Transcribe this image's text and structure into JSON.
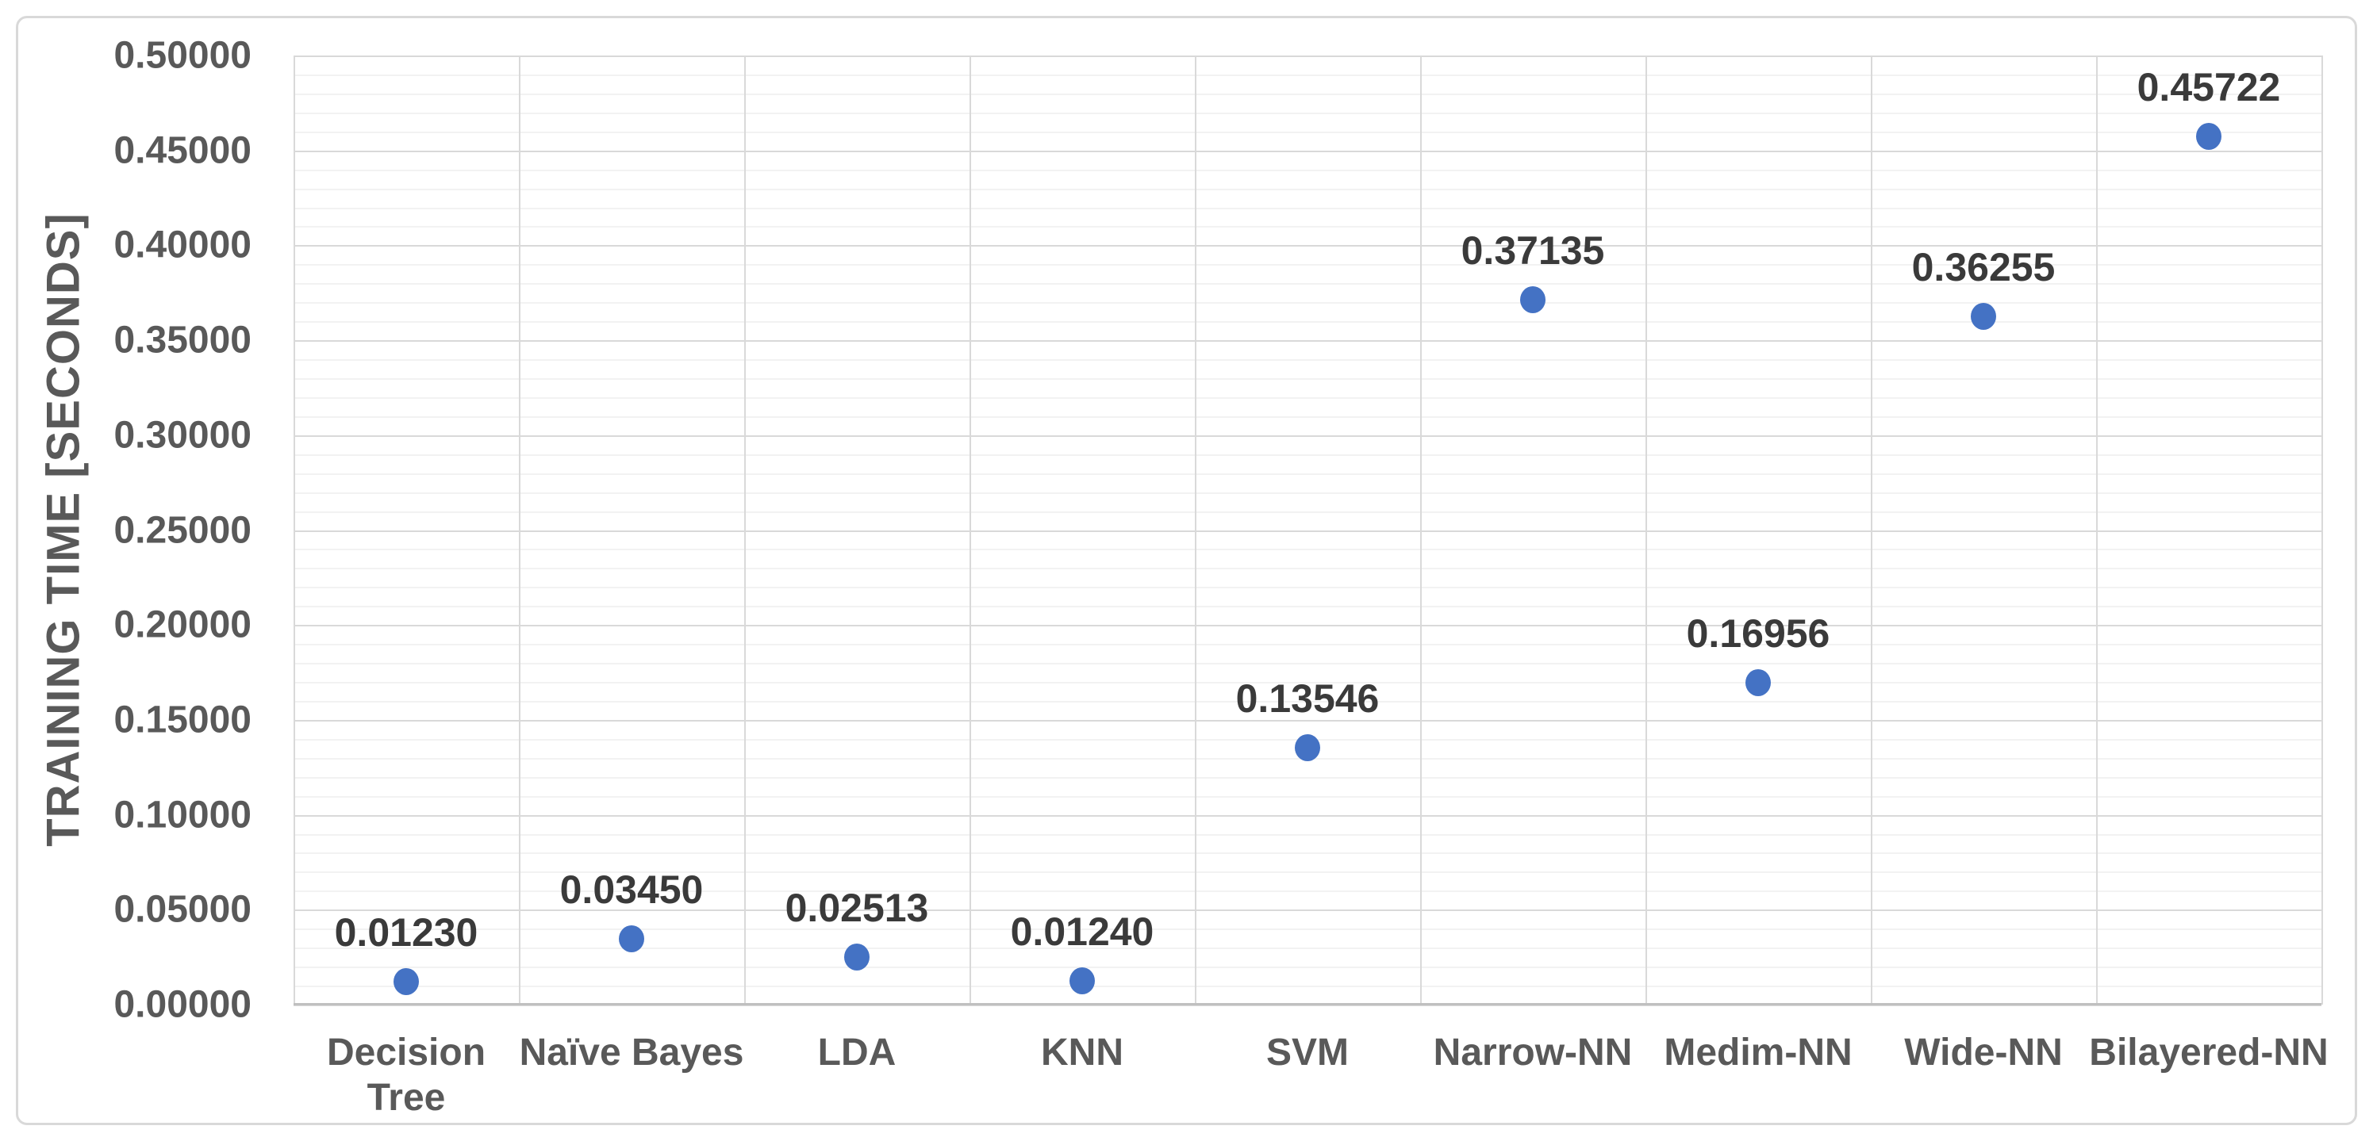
{
  "chart_data": {
    "type": "scatter",
    "title": "",
    "xlabel": "",
    "ylabel": "TRAINING TIME [SECONDS]",
    "categories": [
      "Decision\nTree",
      "Naïve Bayes",
      "LDA",
      "KNN",
      "SVM",
      "Narrow-NN",
      "Medim-NN",
      "Wide-NN",
      "Bilayered-NN"
    ],
    "values": [
      0.0123,
      0.0345,
      0.02513,
      0.0124,
      0.13546,
      0.37135,
      0.16956,
      0.36255,
      0.45722
    ],
    "point_labels": [
      "0.01230",
      "0.03450",
      "0.02513",
      "0.01240",
      "0.13546",
      "0.37135",
      "0.16956",
      "0.36255",
      "0.45722"
    ],
    "ylim": [
      0.0,
      0.5
    ],
    "y_major_step": 0.05,
    "y_minor_step": 0.01,
    "y_tick_decimals": 5,
    "y_tick_labels": [
      "0.00000",
      "0.05000",
      "0.10000",
      "0.15000",
      "0.20000",
      "0.25000",
      "0.30000",
      "0.35000",
      "0.40000",
      "0.45000",
      "0.50000"
    ],
    "grid": true,
    "legend_position": "none",
    "colors": {
      "marker": "#4472C4",
      "data_label": "#3A3A3A",
      "axis_text": "#595959",
      "major_grid": "#D9D9D9",
      "minor_grid": "#F2F2F2",
      "axis_line": "#C0C0C0",
      "chart_border": "#D9D9D9",
      "background": "#FFFFFF"
    }
  }
}
